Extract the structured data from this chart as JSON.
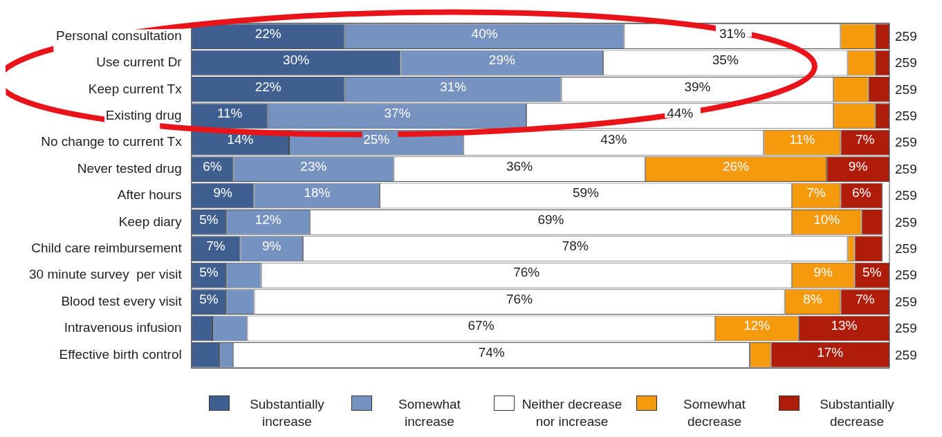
{
  "chart_data": {
    "type": "bar",
    "orientation": "horizontal",
    "stacked": true,
    "xlim": [
      0,
      100
    ],
    "tick_labels": "y",
    "legend": "bottom",
    "categories": [
      "Personal consultation",
      "Use current Dr",
      "Keep current Tx",
      "Existing drug",
      "No change to current Tx",
      "Never tested drug",
      "After hours",
      "Keep diary",
      "Child care reimbursement",
      "30 minute survey  per visit",
      "Blood test every visit",
      "Intravenous infusion",
      "Effective birth control"
    ],
    "series": [
      {
        "name": "Substantially increase",
        "color": "#3f5f91",
        "values": [
          22,
          30,
          22,
          11,
          14,
          6,
          9,
          5,
          7,
          5,
          5,
          3,
          4
        ],
        "value_labels": [
          "22%",
          "30%",
          "22%",
          "11%",
          "14%",
          "6%",
          "9%",
          "5%",
          "7%",
          "5%",
          "5%",
          null,
          null
        ]
      },
      {
        "name": "Somewhat increase",
        "color": "#7592c1",
        "values": [
          40,
          29,
          31,
          37,
          25,
          23,
          18,
          12,
          9,
          5,
          4,
          5,
          2
        ],
        "value_labels": [
          "40%",
          "29%",
          "31%",
          "37%",
          "25%",
          "23%",
          "18%",
          "12%",
          "9%",
          null,
          null,
          null,
          null
        ]
      },
      {
        "name": "Neither decrease nor increase",
        "color": "#ffffff",
        "values": [
          31,
          35,
          39,
          44,
          43,
          36,
          59,
          69,
          78,
          76,
          76,
          67,
          74
        ],
        "value_labels": [
          "31%",
          "35%",
          "39%",
          "44%",
          "43%",
          "36%",
          "59%",
          "69%",
          "78%",
          "76%",
          "76%",
          "67%",
          "74%"
        ]
      },
      {
        "name": "Somewhat decrease",
        "color": "#f59a0c",
        "values": [
          5,
          4,
          5,
          6,
          11,
          26,
          7,
          10,
          1,
          9,
          8,
          12,
          3
        ],
        "value_labels": [
          null,
          null,
          null,
          null,
          "11%",
          "26%",
          "7%",
          "10%",
          null,
          "9%",
          "8%",
          "12%",
          null
        ]
      },
      {
        "name": "Substantially decrease",
        "color": "#b01c0a",
        "values": [
          2,
          2,
          3,
          2,
          7,
          9,
          6,
          3,
          4,
          5,
          7,
          13,
          17
        ],
        "value_labels": [
          null,
          null,
          null,
          null,
          "7%",
          "9%",
          "6%",
          null,
          null,
          "5%",
          "7%",
          "13%",
          "17%"
        ]
      }
    ],
    "annotations": [
      "259",
      "259",
      "259",
      "259",
      "259",
      "259",
      "259",
      "259",
      "259",
      "259",
      "259",
      "259",
      "259"
    ]
  }
}
